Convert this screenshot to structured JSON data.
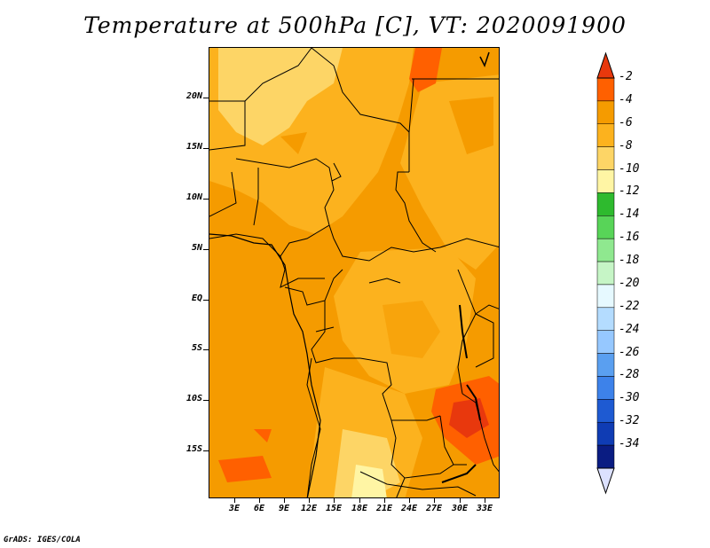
{
  "title": "Temperature at 500hPa [C], VT: 2020091900",
  "credit": "GrADS: IGES/COLA",
  "y_ticks": [
    "20N",
    "15N",
    "10N",
    "5N",
    "EQ",
    "5S",
    "10S",
    "15S"
  ],
  "x_ticks": [
    "3E",
    "6E",
    "9E",
    "12E",
    "15E",
    "18E",
    "21E",
    "24E",
    "27E",
    "30E",
    "33E"
  ],
  "colorbar": {
    "labels": [
      "-2",
      "-4",
      "-6",
      "-8",
      "-10",
      "-12",
      "-14",
      "-16",
      "-18",
      "-20",
      "-22",
      "-24",
      "-26",
      "-28",
      "-30",
      "-32",
      "-34"
    ],
    "colors": [
      "#e8380d",
      "#ff6000",
      "#f59b00",
      "#fcb21e",
      "#fdd566",
      "#fff5a4",
      "#2eba2e",
      "#58d458",
      "#8fe88f",
      "#c6f5c6",
      "#e6f9ff",
      "#b4dcff",
      "#96c8ff",
      "#5a9ff0",
      "#3d82ea",
      "#1e5ad2",
      "#0f3cb4",
      "#0a1c82",
      "#dce1ff"
    ]
  },
  "map": {
    "field_colors": {
      "dominant": "#f59b00",
      "light": "#fcb21e",
      "lighter": "#fdd566",
      "lightest": "#fff5a4",
      "warm": "#ff6000"
    }
  }
}
